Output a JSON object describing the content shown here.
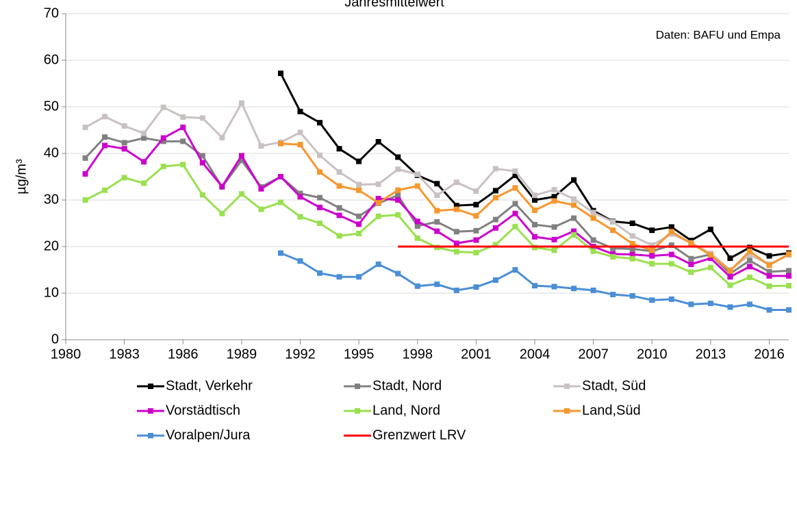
{
  "chart_data": {
    "type": "line",
    "title": "Jahresmittelwert",
    "annotation": "Daten: BAFU und Empa",
    "y_label": "µg/m³",
    "x": [
      1981,
      1982,
      1983,
      1984,
      1985,
      1986,
      1987,
      1988,
      1989,
      1990,
      1991,
      1992,
      1993,
      1994,
      1995,
      1996,
      1997,
      1998,
      1999,
      2000,
      2001,
      2002,
      2003,
      2004,
      2005,
      2006,
      2007,
      2008,
      2009,
      2010,
      2011,
      2012,
      2013,
      2014,
      2015,
      2016,
      2017
    ],
    "xlim": [
      1980,
      2017
    ],
    "xticks": [
      1980,
      1983,
      1986,
      1989,
      1992,
      1995,
      1998,
      2001,
      2004,
      2007,
      2010,
      2013,
      2016
    ],
    "ylim": [
      0,
      70
    ],
    "yticks": [
      0,
      10,
      20,
      30,
      40,
      50,
      60,
      70
    ],
    "grid": true,
    "series": [
      {
        "name": "Stadt, Verkehr",
        "color": "#000000",
        "marker": true,
        "values": [
          null,
          null,
          null,
          null,
          null,
          null,
          null,
          null,
          null,
          null,
          57.2,
          49,
          46.6,
          41,
          38.3,
          42.5,
          39.2,
          35.3,
          33.5,
          28.8,
          29,
          32,
          35.3,
          30,
          30.7,
          34.3,
          27.7,
          25.4,
          25,
          23.5,
          24.2,
          21.3,
          23.7,
          17.5,
          19.8,
          18,
          18.6
        ]
      },
      {
        "name": "Stadt, Nord",
        "color": "#808080",
        "marker": true,
        "values": [
          39,
          43.5,
          42.3,
          43.3,
          42.6,
          42.6,
          39.5,
          32.8,
          38.5,
          32.8,
          35,
          31.4,
          30.5,
          28.3,
          26.5,
          29.3,
          31,
          24.4,
          25.3,
          23.2,
          23.4,
          25.8,
          29.2,
          24.7,
          24.2,
          26.1,
          21.4,
          19.6,
          19.5,
          19,
          20.3,
          17.4,
          18.3,
          14.2,
          17,
          14.6,
          14.8
        ]
      },
      {
        "name": "Stadt, Süd",
        "color": "#c9c1c1",
        "marker": true,
        "values": [
          45.6,
          47.9,
          45.9,
          44.3,
          49.9,
          47.8,
          47.6,
          43.4,
          50.8,
          41.6,
          42.4,
          44.5,
          39.6,
          36,
          33.3,
          33.4,
          36.6,
          35.5,
          31,
          33.8,
          31.9,
          36.7,
          36.2,
          31,
          32.2,
          30.2,
          27.3,
          25.3,
          22.3,
          20.3,
          22.7,
          20.8,
          18.5,
          15,
          18.2,
          16.2,
          18.2
        ]
      },
      {
        "name": "Vorstädtisch",
        "color": "#cc00cc",
        "marker": true,
        "values": [
          35.6,
          41.7,
          41,
          38.2,
          43.3,
          45.6,
          38,
          32.9,
          39.5,
          32.4,
          35,
          30.7,
          28.4,
          26.7,
          24.8,
          30.3,
          30,
          25.4,
          23.3,
          20.7,
          21.4,
          24,
          27.1,
          22.1,
          21.5,
          23.3,
          20,
          18.4,
          18.3,
          18,
          18.3,
          16.2,
          17.5,
          13.5,
          15.7,
          13.7,
          13.7
        ]
      },
      {
        "name": "Land, Nord",
        "color": "#99e04f",
        "marker": true,
        "values": [
          30,
          32.1,
          34.8,
          33.6,
          37.2,
          37.6,
          31.1,
          27.1,
          31.3,
          28,
          29.5,
          26.4,
          25,
          22.3,
          22.8,
          26.5,
          26.8,
          21.8,
          19.8,
          18.9,
          18.7,
          20.4,
          24.3,
          19.8,
          19.2,
          22.5,
          19,
          17.8,
          17.4,
          16.3,
          16.3,
          14.5,
          15.5,
          11.7,
          13.4,
          11.5,
          11.6
        ]
      },
      {
        "name": "Land,Süd",
        "color": "#f7962d",
        "marker": true,
        "values": [
          null,
          null,
          null,
          null,
          null,
          null,
          null,
          null,
          null,
          null,
          42.1,
          41.9,
          36,
          33,
          32.1,
          29.4,
          32.1,
          33,
          27.7,
          28,
          26.6,
          30.5,
          32.6,
          27.8,
          29.8,
          28.9,
          26.1,
          23.5,
          20.6,
          19.2,
          23.2,
          20.7,
          18.2,
          14.8,
          19,
          16,
          18.4
        ]
      },
      {
        "name": "Voralpen/Jura",
        "color": "#4a8ed6",
        "marker": true,
        "values": [
          null,
          null,
          null,
          null,
          null,
          null,
          null,
          null,
          null,
          null,
          18.6,
          16.9,
          14.3,
          13.5,
          13.5,
          16.2,
          14.2,
          11.5,
          11.9,
          10.6,
          11.3,
          12.8,
          15,
          11.6,
          11.4,
          11,
          10.6,
          9.7,
          9.4,
          8.5,
          8.7,
          7.6,
          7.8,
          7,
          7.6,
          6.4,
          6.4
        ]
      },
      {
        "name": "Grenzwert LRV",
        "color": "#ff0000",
        "marker": false,
        "values": [
          null,
          null,
          null,
          null,
          null,
          null,
          null,
          null,
          null,
          null,
          null,
          null,
          null,
          null,
          null,
          null,
          20,
          20,
          20,
          20,
          20,
          20,
          20,
          20,
          20,
          20,
          20,
          20,
          20,
          20,
          20,
          20,
          20,
          20,
          20,
          20,
          20
        ]
      }
    ]
  }
}
